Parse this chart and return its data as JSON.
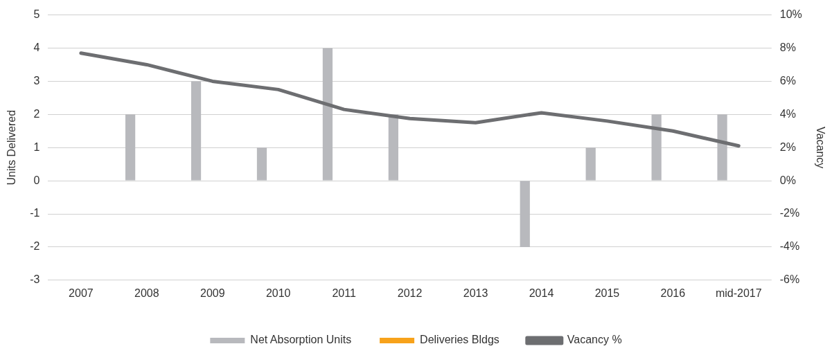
{
  "chart_data": {
    "type": "bar",
    "categories": [
      "2007",
      "2008",
      "2009",
      "2010",
      "2011",
      "2012",
      "2013",
      "2014",
      "2015",
      "2016",
      "mid-2017"
    ],
    "series": [
      {
        "name": "Net Absorption Units",
        "color": "#b8b9bd",
        "values": [
          0,
          2,
          3,
          1,
          4,
          2,
          0,
          -2,
          1,
          2,
          2
        ]
      },
      {
        "name": "Deliveries Bldgs",
        "color": "#f7a21b",
        "values": [
          0,
          0,
          0,
          0,
          0,
          0,
          0,
          0,
          0,
          0,
          0
        ]
      },
      {
        "name": "Vacancy %",
        "type": "line",
        "axis": "y2",
        "color": "#6d6e71",
        "values": [
          7.7,
          7.0,
          6.0,
          5.5,
          4.3,
          3.75,
          3.5,
          4.1,
          3.6,
          3.0,
          2.1
        ]
      }
    ],
    "ylabel": "Units Delivered",
    "y2label": "Vacancy",
    "ylim": [
      -3,
      5
    ],
    "yticks": [
      -3,
      -2,
      -1,
      0,
      1,
      2,
      3,
      4,
      5
    ],
    "y2lim": [
      -6,
      10
    ],
    "y2ticks": [
      {
        "value": -6,
        "label": "-6%"
      },
      {
        "value": -4,
        "label": "-4%"
      },
      {
        "value": -2,
        "label": "-2%"
      },
      {
        "value": 0,
        "label": "0%"
      },
      {
        "value": 2,
        "label": "2%"
      },
      {
        "value": 4,
        "label": "4%"
      },
      {
        "value": 6,
        "label": "6%"
      },
      {
        "value": 8,
        "label": "8%"
      },
      {
        "value": 10,
        "label": "10%"
      }
    ],
    "grid": "y",
    "legend": "bottom",
    "marker": "none",
    "line_style": "solid"
  }
}
